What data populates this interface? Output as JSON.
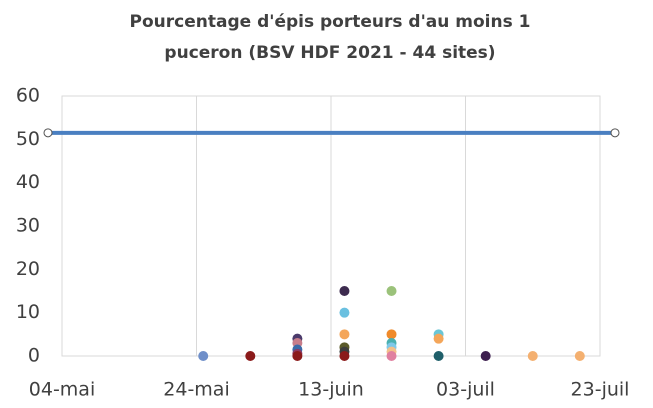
{
  "chart_data": {
    "type": "scatter",
    "title": [
      "Pourcentage d'épis porteurs d'au moins 1",
      "puceron (BSV HDF 2021 - 44 sites)"
    ],
    "xlim": [
      "05-04",
      "07-23"
    ],
    "xticks": [
      {
        "value": "05-04",
        "label": "04-mai"
      },
      {
        "value": "05-24",
        "label": "24-mai"
      },
      {
        "value": "06-13",
        "label": "13-juin"
      },
      {
        "value": "07-03",
        "label": "03-juil"
      },
      {
        "value": "07-23",
        "label": "23-juil"
      }
    ],
    "ylim": [
      0,
      60
    ],
    "yticks": [
      0,
      10,
      20,
      30,
      40,
      50,
      60
    ],
    "grid": "x",
    "threshold": {
      "value": 51.5,
      "color": "#4a7fc1"
    },
    "series": [
      {
        "x": [
          "05-25",
          "06-01",
          "06-08",
          "06-08",
          "06-08",
          "06-08",
          "06-08",
          "06-15",
          "06-15",
          "06-15",
          "06-15",
          "06-15",
          "06-15",
          "06-22",
          "06-22",
          "06-22",
          "06-22",
          "06-22",
          "06-22",
          "06-29",
          "06-29",
          "06-29",
          "07-06",
          "07-13",
          "07-20"
        ],
        "values": [
          0,
          0,
          4,
          3,
          1.5,
          0.5,
          0,
          15,
          10,
          5,
          2,
          1,
          0,
          15,
          5,
          3,
          2,
          1,
          0,
          5,
          4,
          0,
          0,
          0,
          0
        ],
        "colors": [
          "#6f8fc9",
          "#8b1a1a",
          "#4b3a6b",
          "#c77d8a",
          "#3b6aa8",
          "#8b3a62",
          "#8b1a1a",
          "#3d2b4f",
          "#6ac0e0",
          "#f4a65a",
          "#5a5a2a",
          "#3d3d3d",
          "#8b1a1a",
          "#9bc27a",
          "#f08a2a",
          "#4ab0b0",
          "#7fc8e8",
          "#f4c08a",
          "#e080a0",
          "#6ac6d6",
          "#f4a65a",
          "#1f5f6a",
          "#3d1f4f",
          "#f4b070",
          "#f4b070"
        ]
      }
    ]
  }
}
